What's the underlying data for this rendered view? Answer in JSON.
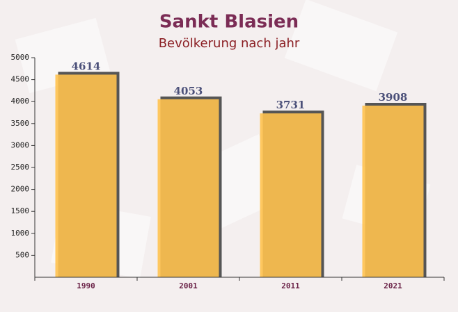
{
  "chart_data": {
    "type": "bar",
    "title": "Sankt Blasien",
    "subtitle": "Bevölkerung nach jahr",
    "categories": [
      "1990",
      "2001",
      "2011",
      "2021"
    ],
    "values": [
      4614,
      4053,
      3731,
      3908
    ],
    "color": "#ffc24f",
    "ylim": [
      0,
      5000
    ],
    "yticks": [
      500,
      1000,
      1500,
      2000,
      2500,
      3000,
      3500,
      4000,
      4500,
      5000
    ]
  }
}
